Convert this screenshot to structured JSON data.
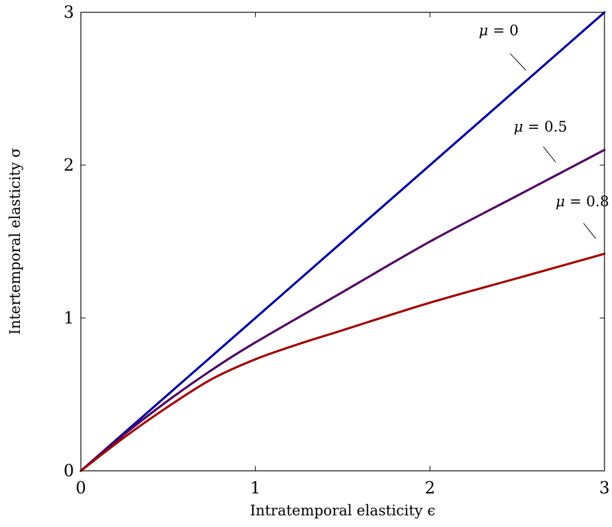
{
  "chart_data": {
    "type": "line",
    "title": "",
    "xlabel": "Intratemporal elasticity ϵ",
    "ylabel": "Intertemporal elasticity σ",
    "xlim": [
      0,
      3
    ],
    "ylim": [
      0,
      3
    ],
    "xticks": [
      "0",
      "1",
      "2",
      "3"
    ],
    "yticks": [
      "0",
      "1",
      "2",
      "3"
    ],
    "grid": false,
    "legend": "none",
    "series": [
      {
        "name": "μ = 0",
        "color": "#00009c",
        "x": [
          0,
          0.5,
          1,
          1.5,
          2,
          2.5,
          3
        ],
        "y": [
          0,
          0.5,
          1,
          1.5,
          2,
          2.5,
          3
        ]
      },
      {
        "name": "μ = 0.5",
        "color": "#4c0060",
        "x": [
          0,
          0.25,
          0.5,
          0.75,
          1,
          1.5,
          2,
          2.5,
          3
        ],
        "y": [
          0,
          0.24,
          0.46,
          0.66,
          0.84,
          1.17,
          1.5,
          1.8,
          2.1
        ]
      },
      {
        "name": "μ = 0.8",
        "color": "#a00000",
        "x": [
          0,
          0.25,
          0.5,
          0.75,
          1,
          1.25,
          1.5,
          2,
          2.5,
          3
        ],
        "y": [
          0,
          0.22,
          0.42,
          0.6,
          0.73,
          0.83,
          0.92,
          1.1,
          1.26,
          1.42
        ]
      }
    ],
    "annotations": [
      {
        "greek": "μ",
        "rest": " = 0",
        "at": [
          2.28,
          2.85
        ],
        "pointer_from": [
          2.46,
          2.73
        ],
        "pointer_to": [
          2.55,
          2.62
        ]
      },
      {
        "greek": "μ",
        "rest": " = 0.5",
        "at": [
          2.48,
          2.22
        ],
        "pointer_from": [
          2.65,
          2.12
        ],
        "pointer_to": [
          2.72,
          2.02
        ]
      },
      {
        "greek": "μ",
        "rest": " = 0.8",
        "at": [
          2.72,
          1.73
        ],
        "pointer_from": [
          2.88,
          1.62
        ],
        "pointer_to": [
          2.95,
          1.52
        ]
      }
    ]
  }
}
